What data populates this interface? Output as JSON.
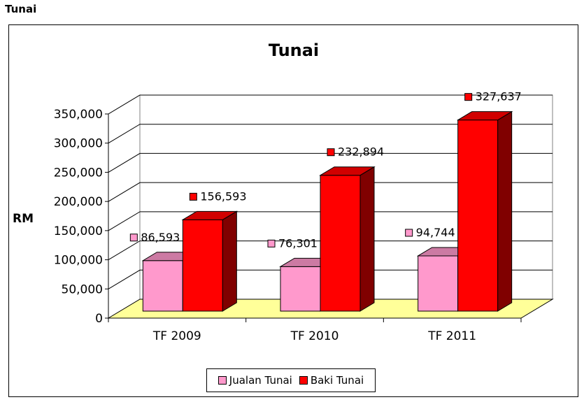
{
  "page": {
    "title": "Tunai"
  },
  "chart_data": {
    "type": "bar",
    "title": "Tunai",
    "ylabel": "RM",
    "xlabel": "",
    "categories": [
      "TF 2009",
      "TF 2010",
      "TF 2011"
    ],
    "ylim": [
      0,
      350000
    ],
    "yticks": [
      0,
      50000,
      100000,
      150000,
      200000,
      250000,
      300000,
      350000
    ],
    "ytick_labels": [
      "0",
      "50,000",
      "100,000",
      "150,000",
      "200,000",
      "250,000",
      "300,000",
      "350,000"
    ],
    "series": [
      {
        "name": "Jualan Tunai",
        "values": [
          86593,
          76301,
          94744
        ],
        "labels": [
          "86,593",
          "76,301",
          "94,744"
        ],
        "color": "#ff99cc",
        "side_color": "#bb7799"
      },
      {
        "name": "Baki Tunai",
        "values": [
          156593,
          232894,
          327637
        ],
        "labels": [
          "156,593",
          "232,894",
          "327,637"
        ],
        "color": "#ff0000",
        "side_color": "#800000"
      }
    ],
    "grid": true,
    "legend": "bottom",
    "floor_color": "#ffff99",
    "wall_color": "#ffffff"
  }
}
